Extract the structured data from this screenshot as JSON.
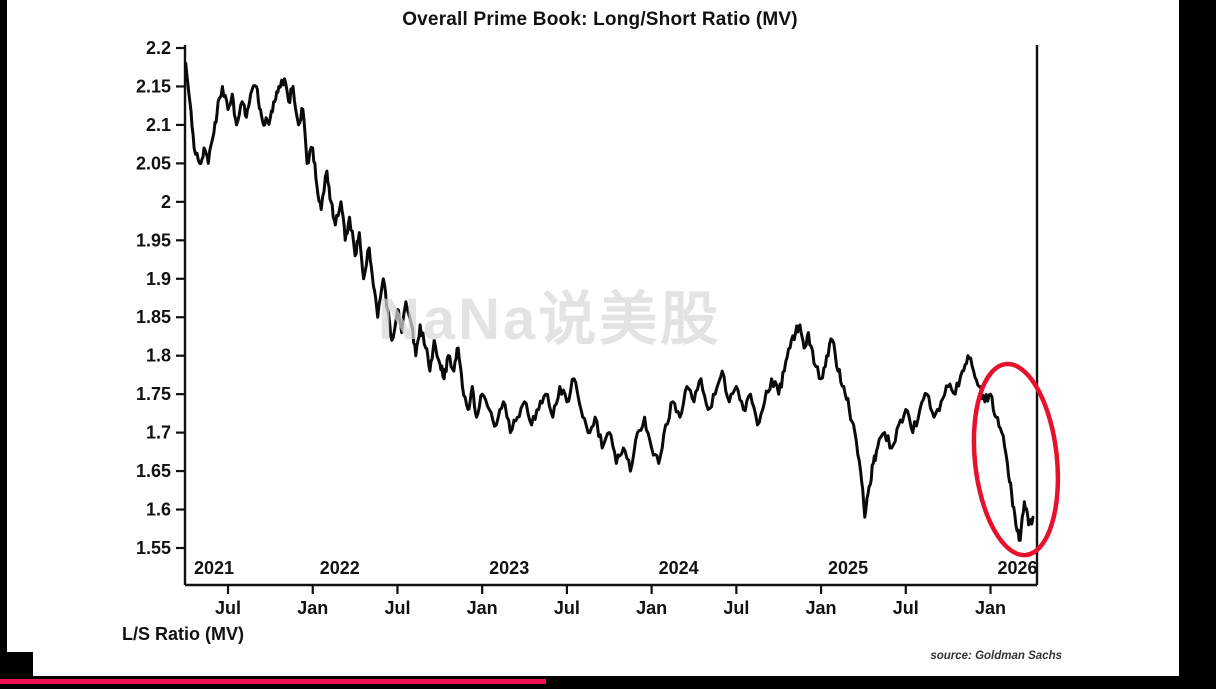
{
  "title": "Overall Prime Book: Long/Short Ratio (MV)",
  "watermark": "NaNa说美股",
  "footer": {
    "axis_caption": "L/S Ratio (MV)",
    "source": "source: Goldman Sachs"
  },
  "colors": {
    "line": "#0a0a0a",
    "axis": "#111111",
    "text": "#111111",
    "annotation": "#e8112d",
    "progress": "#ed1250"
  },
  "chart_data": {
    "type": "line",
    "title": "Overall Prime Book: Long/Short Ratio (MV)",
    "xlabel": "",
    "ylabel": "L/S Ratio (MV)",
    "ylim": [
      1.5,
      2.2
    ],
    "grid": false,
    "legend": "none",
    "source": "source: Goldman Sachs",
    "y_ticks": [
      {
        "label": "2.2",
        "value": 2.2
      },
      {
        "label": "2.15",
        "value": 2.15
      },
      {
        "label": "2.1",
        "value": 2.1
      },
      {
        "label": "2.05",
        "value": 2.05
      },
      {
        "label": "2",
        "value": 2.0
      },
      {
        "label": "1.95",
        "value": 1.95
      },
      {
        "label": "1.9",
        "value": 1.9
      },
      {
        "label": "1.85",
        "value": 1.85
      },
      {
        "label": "1.8",
        "value": 1.8
      },
      {
        "label": "1.75",
        "value": 1.75
      },
      {
        "label": "1.7",
        "value": 1.7
      },
      {
        "label": "1.65",
        "value": 1.65
      },
      {
        "label": "1.6",
        "value": 1.6
      },
      {
        "label": "1.55",
        "value": 1.55
      }
    ],
    "x_ticks": [
      {
        "label": "Jul",
        "t": 6
      },
      {
        "label": "Jan",
        "t": 12
      },
      {
        "label": "Jul",
        "t": 18
      },
      {
        "label": "Jan",
        "t": 24
      },
      {
        "label": "Jul",
        "t": 30
      },
      {
        "label": "Jan",
        "t": 36
      },
      {
        "label": "Jul",
        "t": 42
      },
      {
        "label": "Jan",
        "t": 48
      },
      {
        "label": "Jul",
        "t": 54
      },
      {
        "label": "Jan",
        "t": 60
      }
    ],
    "year_labels": [
      {
        "label": "2021",
        "t": 0
      },
      {
        "label": "2022",
        "t": 12
      },
      {
        "label": "2023",
        "t": 24
      },
      {
        "label": "2024",
        "t": 36
      },
      {
        "label": "2025",
        "t": 48
      },
      {
        "label": "2026",
        "t": 60
      }
    ],
    "series": [
      {
        "name": "Overall Prime Book L/S Ratio (MV)",
        "x_unit": "months since Jan 2021",
        "points": [
          [
            3,
            2.18
          ],
          [
            3.3,
            2.13
          ],
          [
            3.6,
            2.07
          ],
          [
            4,
            2.05
          ],
          [
            4.3,
            2.07
          ],
          [
            4.6,
            2.05
          ],
          [
            5,
            2.09
          ],
          [
            5.3,
            2.13
          ],
          [
            5.6,
            2.15
          ],
          [
            6,
            2.12
          ],
          [
            6.3,
            2.14
          ],
          [
            6.6,
            2.1
          ],
          [
            7,
            2.13
          ],
          [
            7.3,
            2.11
          ],
          [
            7.6,
            2.14
          ],
          [
            8,
            2.15
          ],
          [
            8.3,
            2.12
          ],
          [
            8.6,
            2.1
          ],
          [
            9,
            2.11
          ],
          [
            9.3,
            2.13
          ],
          [
            9.6,
            2.15
          ],
          [
            10,
            2.16
          ],
          [
            10.3,
            2.13
          ],
          [
            10.6,
            2.15
          ],
          [
            11,
            2.1
          ],
          [
            11.3,
            2.12
          ],
          [
            11.6,
            2.05
          ],
          [
            12,
            2.07
          ],
          [
            12.3,
            2.02
          ],
          [
            12.6,
            1.99
          ],
          [
            13,
            2.04
          ],
          [
            13.3,
            2.0
          ],
          [
            13.6,
            1.97
          ],
          [
            14,
            2.0
          ],
          [
            14.3,
            1.95
          ],
          [
            14.6,
            1.98
          ],
          [
            15,
            1.93
          ],
          [
            15.3,
            1.96
          ],
          [
            15.6,
            1.9
          ],
          [
            16,
            1.94
          ],
          [
            16.3,
            1.89
          ],
          [
            16.6,
            1.85
          ],
          [
            17,
            1.9
          ],
          [
            17.3,
            1.86
          ],
          [
            17.6,
            1.82
          ],
          [
            18,
            1.86
          ],
          [
            18.3,
            1.83
          ],
          [
            18.6,
            1.87
          ],
          [
            19,
            1.84
          ],
          [
            19.3,
            1.8
          ],
          [
            19.6,
            1.84
          ],
          [
            20,
            1.81
          ],
          [
            20.3,
            1.78
          ],
          [
            20.6,
            1.82
          ],
          [
            21,
            1.79
          ],
          [
            21.3,
            1.77
          ],
          [
            21.6,
            1.8
          ],
          [
            22,
            1.78
          ],
          [
            22.3,
            1.81
          ],
          [
            22.6,
            1.76
          ],
          [
            23,
            1.73
          ],
          [
            23.3,
            1.76
          ],
          [
            23.6,
            1.72
          ],
          [
            24,
            1.75
          ],
          [
            24.5,
            1.73
          ],
          [
            25,
            1.71
          ],
          [
            25.5,
            1.74
          ],
          [
            26,
            1.7
          ],
          [
            26.5,
            1.72
          ],
          [
            27,
            1.74
          ],
          [
            27.5,
            1.71
          ],
          [
            28,
            1.73
          ],
          [
            28.5,
            1.75
          ],
          [
            29,
            1.72
          ],
          [
            29.5,
            1.76
          ],
          [
            30,
            1.74
          ],
          [
            30.5,
            1.77
          ],
          [
            31,
            1.73
          ],
          [
            31.5,
            1.7
          ],
          [
            32,
            1.72
          ],
          [
            32.5,
            1.68
          ],
          [
            33,
            1.7
          ],
          [
            33.5,
            1.66
          ],
          [
            34,
            1.68
          ],
          [
            34.5,
            1.65
          ],
          [
            35,
            1.7
          ],
          [
            35.5,
            1.72
          ],
          [
            36,
            1.68
          ],
          [
            36.5,
            1.66
          ],
          [
            37,
            1.71
          ],
          [
            37.5,
            1.74
          ],
          [
            38,
            1.72
          ],
          [
            38.5,
            1.76
          ],
          [
            39,
            1.74
          ],
          [
            39.5,
            1.77
          ],
          [
            40,
            1.73
          ],
          [
            40.5,
            1.75
          ],
          [
            41,
            1.78
          ],
          [
            41.5,
            1.74
          ],
          [
            42,
            1.76
          ],
          [
            42.5,
            1.73
          ],
          [
            43,
            1.75
          ],
          [
            43.5,
            1.71
          ],
          [
            44,
            1.74
          ],
          [
            44.5,
            1.77
          ],
          [
            45,
            1.75
          ],
          [
            45.4,
            1.78
          ],
          [
            45.8,
            1.81
          ],
          [
            46.2,
            1.83
          ],
          [
            46.5,
            1.84
          ],
          [
            46.8,
            1.81
          ],
          [
            47.1,
            1.83
          ],
          [
            47.5,
            1.79
          ],
          [
            48,
            1.77
          ],
          [
            48.4,
            1.8
          ],
          [
            48.8,
            1.82
          ],
          [
            49.2,
            1.78
          ],
          [
            49.6,
            1.76
          ],
          [
            50,
            1.73
          ],
          [
            50.4,
            1.7
          ],
          [
            50.8,
            1.65
          ],
          [
            51.1,
            1.59
          ],
          [
            51.4,
            1.63
          ],
          [
            51.7,
            1.66
          ],
          [
            52,
            1.68
          ],
          [
            52.5,
            1.7
          ],
          [
            53,
            1.68
          ],
          [
            53.5,
            1.71
          ],
          [
            54,
            1.73
          ],
          [
            54.5,
            1.7
          ],
          [
            55,
            1.73
          ],
          [
            55.5,
            1.75
          ],
          [
            56,
            1.72
          ],
          [
            56.5,
            1.74
          ],
          [
            57,
            1.76
          ],
          [
            57.5,
            1.75
          ],
          [
            58,
            1.78
          ],
          [
            58.4,
            1.8
          ],
          [
            58.8,
            1.78
          ],
          [
            59.2,
            1.76
          ],
          [
            59.6,
            1.74
          ],
          [
            60,
            1.75
          ],
          [
            60.4,
            1.72
          ],
          [
            60.8,
            1.7
          ],
          [
            61.2,
            1.66
          ],
          [
            61.5,
            1.62
          ],
          [
            61.8,
            1.58
          ],
          [
            62.1,
            1.56
          ],
          [
            62.4,
            1.61
          ],
          [
            62.7,
            1.58
          ],
          [
            63,
            1.59
          ]
        ]
      }
    ],
    "annotation": {
      "shape": "ellipse",
      "t_center": 61.8,
      "v_center": 1.665
    }
  }
}
